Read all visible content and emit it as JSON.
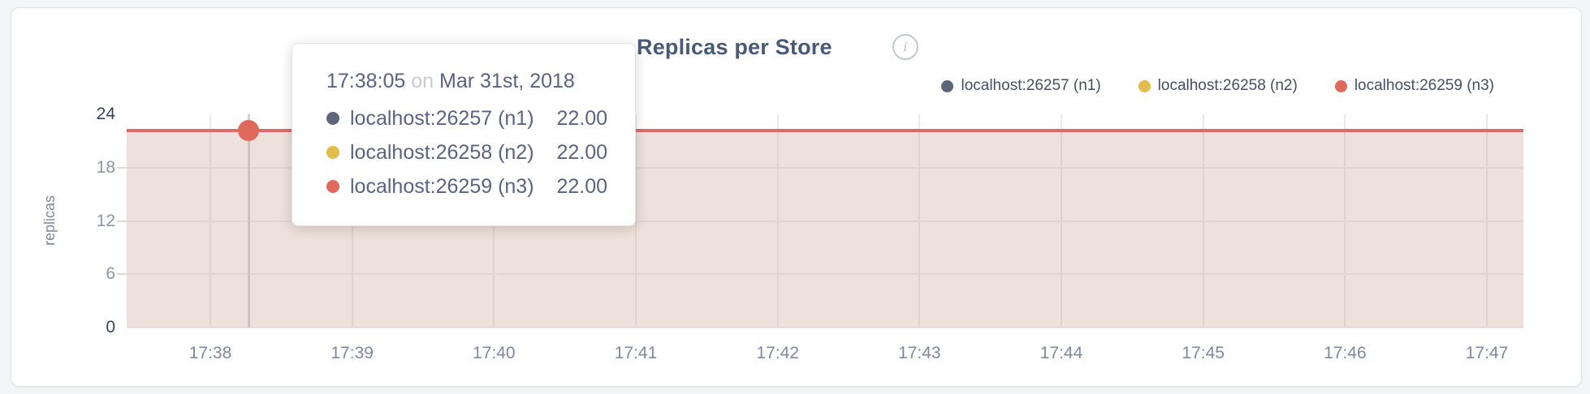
{
  "header": {
    "title": "Replicas per Store",
    "info_icon_glyph": "i"
  },
  "axes": {
    "y_label": "replicas",
    "y_ticks": [
      "24",
      "18",
      "12",
      "6",
      "0"
    ],
    "x_ticks": [
      "17:38",
      "17:39",
      "17:40",
      "17:41",
      "17:42",
      "17:43",
      "17:44",
      "17:45",
      "17:46",
      "17:47"
    ]
  },
  "tooltip": {
    "time": "17:38:05",
    "connector": "on",
    "date": "Mar 31st, 2018",
    "rows": [
      {
        "name": "localhost:26257 (n1)",
        "value": "22.00",
        "color": "#5c6779"
      },
      {
        "name": "localhost:26258 (n2)",
        "value": "22.00",
        "color": "#e3bc4b"
      },
      {
        "name": "localhost:26259 (n3)",
        "value": "22.00",
        "color": "#e0695e"
      }
    ]
  },
  "colors": {
    "line": "#dd6c67",
    "fill": "#eee0da",
    "hover_dot": "#e0695e",
    "title_text": "#475a77",
    "axis_text": "#7e88a0"
  },
  "chart_data": {
    "type": "line",
    "title": "Replicas per Store",
    "xlabel": "",
    "ylabel": "replicas",
    "ylim": [
      0,
      24
    ],
    "y_ticks": [
      0,
      6,
      12,
      18,
      24
    ],
    "x": [
      "17:38",
      "17:39",
      "17:40",
      "17:41",
      "17:42",
      "17:43",
      "17:44",
      "17:45",
      "17:46",
      "17:47"
    ],
    "series": [
      {
        "name": "localhost:26257 (n1)",
        "color": "#5c6779",
        "values": [
          22,
          22,
          22,
          22,
          22,
          22,
          22,
          22,
          22,
          22
        ]
      },
      {
        "name": "localhost:26258 (n2)",
        "color": "#e3bc4b",
        "values": [
          22,
          22,
          22,
          22,
          22,
          22,
          22,
          22,
          22,
          22
        ]
      },
      {
        "name": "localhost:26259 (n3)",
        "color": "#e0695e",
        "values": [
          22,
          22,
          22,
          22,
          22,
          22,
          22,
          22,
          22,
          22
        ]
      }
    ],
    "area_fill": true,
    "grid": true,
    "legend_position": "top-right",
    "hovered_point": {
      "time": "17:38:05",
      "date": "Mar 31st, 2018",
      "values": [
        22.0,
        22.0,
        22.0
      ]
    }
  }
}
